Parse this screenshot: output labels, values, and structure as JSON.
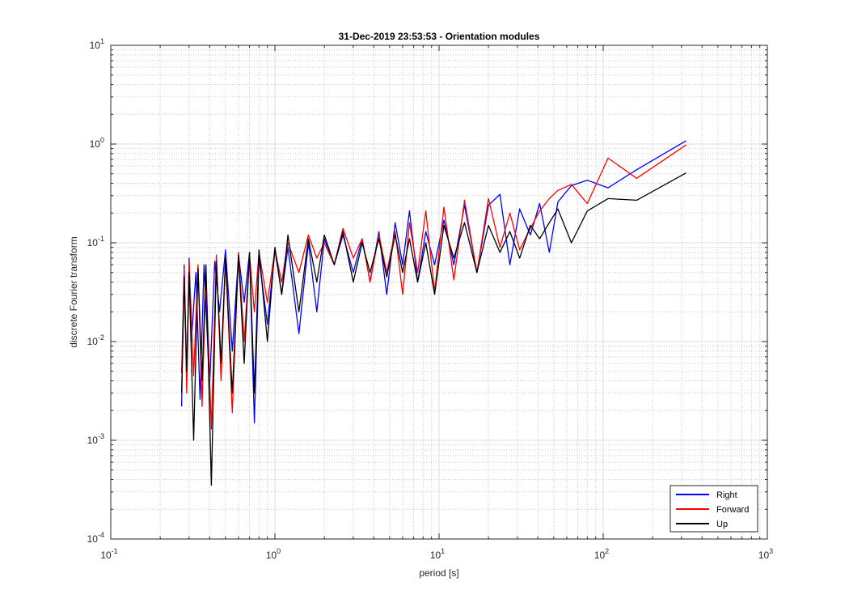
{
  "chart_data": {
    "type": "line",
    "title": "31-Dec-2019 23:53:53 - Orientation modules",
    "xlabel": "period [s]",
    "ylabel": "discrete Fourier transform",
    "xscale": "log",
    "yscale": "log",
    "xlim": [
      0.1,
      1000
    ],
    "ylim": [
      0.0001,
      10
    ],
    "grid": true,
    "minor_grid": true,
    "legend_position": "bottom-right",
    "x_tick_labels": [
      {
        "base": "10",
        "exp": "-1"
      },
      {
        "base": "10",
        "exp": "0"
      },
      {
        "base": "10",
        "exp": "1"
      },
      {
        "base": "10",
        "exp": "2"
      },
      {
        "base": "10",
        "exp": "3"
      }
    ],
    "y_tick_labels": [
      {
        "base": "10",
        "exp": "-4"
      },
      {
        "base": "10",
        "exp": "-3"
      },
      {
        "base": "10",
        "exp": "-2"
      },
      {
        "base": "10",
        "exp": "-1"
      },
      {
        "base": "10",
        "exp": "0"
      },
      {
        "base": "10",
        "exp": "1"
      }
    ],
    "series": [
      {
        "name": "Right",
        "color": "#0000ff",
        "x": [
          0.27,
          0.28,
          0.29,
          0.3,
          0.31,
          0.33,
          0.35,
          0.37,
          0.4,
          0.43,
          0.46,
          0.5,
          0.55,
          0.6,
          0.65,
          0.7,
          0.75,
          0.8,
          0.9,
          1.0,
          1.1,
          1.2,
          1.4,
          1.6,
          1.8,
          2.0,
          2.3,
          2.6,
          3.0,
          3.4,
          3.8,
          4.3,
          4.8,
          5.4,
          6.0,
          6.6,
          7.4,
          8.3,
          9.4,
          10.7,
          12.3,
          14.3,
          17.0,
          20.0,
          23.5,
          27.0,
          31.0,
          36.0,
          41.0,
          47.0,
          53.0,
          64.0,
          80.0,
          107.0,
          160.0,
          320.0
        ],
        "y": [
          0.0022,
          0.06,
          0.004,
          0.07,
          0.01,
          0.05,
          0.0026,
          0.06,
          0.0035,
          0.065,
          0.02,
          0.085,
          0.008,
          0.075,
          0.025,
          0.08,
          0.0015,
          0.07,
          0.015,
          0.085,
          0.03,
          0.09,
          0.012,
          0.1,
          0.02,
          0.11,
          0.06,
          0.12,
          0.05,
          0.11,
          0.04,
          0.13,
          0.03,
          0.16,
          0.06,
          0.21,
          0.04,
          0.13,
          0.06,
          0.17,
          0.06,
          0.24,
          0.05,
          0.24,
          0.31,
          0.06,
          0.22,
          0.12,
          0.25,
          0.08,
          0.26,
          0.38,
          0.43,
          0.36,
          0.55,
          1.08
        ]
      },
      {
        "name": "Forward",
        "color": "#ff0000",
        "x": [
          0.27,
          0.28,
          0.29,
          0.3,
          0.32,
          0.34,
          0.36,
          0.38,
          0.41,
          0.44,
          0.47,
          0.5,
          0.55,
          0.6,
          0.65,
          0.7,
          0.75,
          0.8,
          0.9,
          1.0,
          1.1,
          1.2,
          1.4,
          1.6,
          1.8,
          2.0,
          2.3,
          2.6,
          3.0,
          3.4,
          3.8,
          4.3,
          4.8,
          5.4,
          6.0,
          6.6,
          7.4,
          8.3,
          9.4,
          10.7,
          12.3,
          14.3,
          17.0,
          20.0,
          23.5,
          27.0,
          31.0,
          36.0,
          41.0,
          47.0,
          53.0,
          64.0,
          80.0,
          107.0,
          160.0,
          320.0
        ],
        "y": [
          0.0048,
          0.055,
          0.003,
          0.065,
          0.0045,
          0.06,
          0.0022,
          0.05,
          0.0013,
          0.075,
          0.004,
          0.07,
          0.0019,
          0.08,
          0.01,
          0.075,
          0.02,
          0.08,
          0.025,
          0.085,
          0.04,
          0.1,
          0.05,
          0.12,
          0.07,
          0.1,
          0.06,
          0.14,
          0.07,
          0.11,
          0.04,
          0.12,
          0.05,
          0.13,
          0.03,
          0.16,
          0.05,
          0.21,
          0.032,
          0.23,
          0.042,
          0.27,
          0.05,
          0.28,
          0.09,
          0.2,
          0.085,
          0.14,
          0.21,
          0.28,
          0.34,
          0.39,
          0.25,
          0.72,
          0.45,
          0.98
        ]
      },
      {
        "name": "Up",
        "color": "#000000",
        "x": [
          0.27,
          0.28,
          0.29,
          0.3,
          0.32,
          0.34,
          0.36,
          0.38,
          0.41,
          0.44,
          0.47,
          0.5,
          0.55,
          0.6,
          0.65,
          0.7,
          0.75,
          0.8,
          0.9,
          1.0,
          1.1,
          1.2,
          1.4,
          1.6,
          1.8,
          2.0,
          2.3,
          2.6,
          3.0,
          3.4,
          3.8,
          4.3,
          4.8,
          5.4,
          6.0,
          6.6,
          7.4,
          8.3,
          9.4,
          10.7,
          12.3,
          14.3,
          17.0,
          20.0,
          23.5,
          27.0,
          31.0,
          36.0,
          41.0,
          47.0,
          53.0,
          64.0,
          80.0,
          107.0,
          160.0,
          320.0
        ],
        "y": [
          0.003,
          0.045,
          0.005,
          0.05,
          0.001,
          0.055,
          0.004,
          0.06,
          0.00035,
          0.065,
          0.006,
          0.07,
          0.003,
          0.075,
          0.006,
          0.08,
          0.003,
          0.085,
          0.01,
          0.09,
          0.03,
          0.12,
          0.02,
          0.11,
          0.04,
          0.12,
          0.06,
          0.13,
          0.04,
          0.1,
          0.05,
          0.11,
          0.045,
          0.12,
          0.05,
          0.11,
          0.04,
          0.1,
          0.03,
          0.15,
          0.07,
          0.16,
          0.05,
          0.15,
          0.08,
          0.13,
          0.07,
          0.15,
          0.11,
          0.16,
          0.22,
          0.1,
          0.21,
          0.28,
          0.27,
          0.51
        ]
      }
    ]
  }
}
